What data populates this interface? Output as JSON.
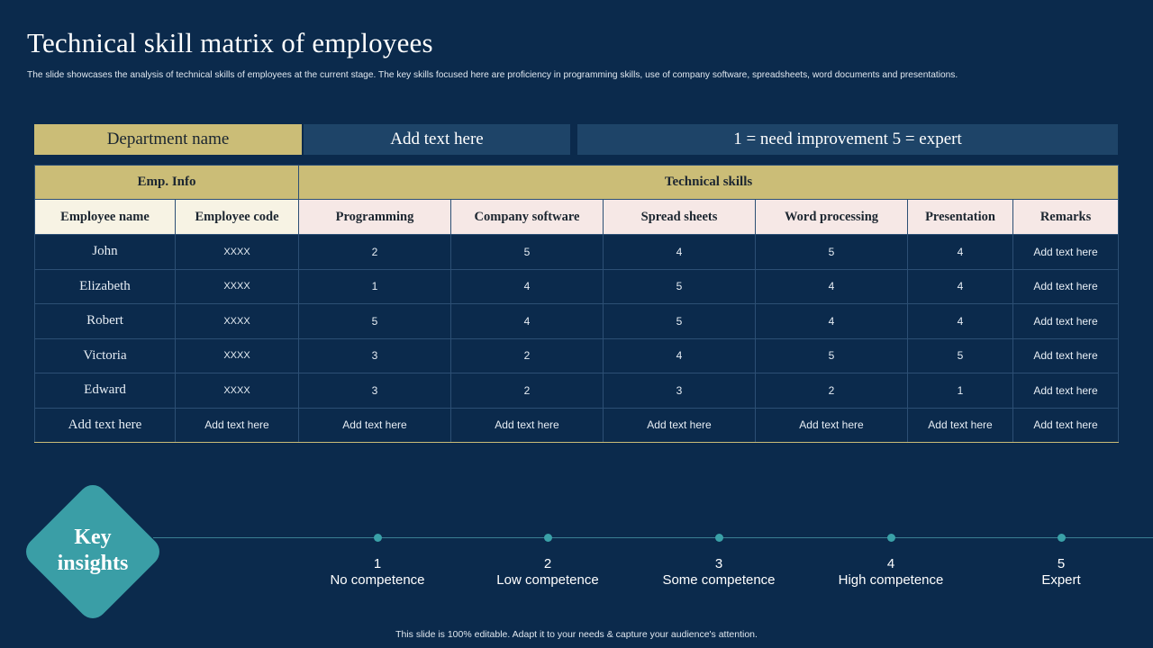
{
  "slide": {
    "title": "Technical skill matrix of employees",
    "subtitle": "The slide showcases the analysis of technical skills of employees at the current stage. The key skills focused here are proficiency in programming skills, use of company software, spreadsheets, word documents and presentations.",
    "footer": "This slide is 100% editable.  Adapt it to your needs & capture your audience's attention."
  },
  "header_bar": {
    "department": "Department name",
    "add_text": "Add text here",
    "scale": "1 = need improvement  5 = expert"
  },
  "table": {
    "groups": {
      "emp_info": "Emp. Info",
      "technical_skills": "Technical skills"
    },
    "columns": [
      "Employee name",
      "Employee code",
      "Programming",
      "Company software",
      "Spread sheets",
      "Word processing",
      "Presentation",
      "Remarks"
    ],
    "rows": [
      [
        "John",
        "XXXX",
        "2",
        "5",
        "4",
        "5",
        "4",
        "Add text here"
      ],
      [
        "Elizabeth",
        "XXXX",
        "1",
        "4",
        "5",
        "4",
        "4",
        "Add text here"
      ],
      [
        "Robert",
        "XXXX",
        "5",
        "4",
        "5",
        "4",
        "4",
        "Add text here"
      ],
      [
        "Victoria",
        "XXXX",
        "3",
        "2",
        "4",
        "5",
        "5",
        "Add text here"
      ],
      [
        "Edward",
        "XXXX",
        "3",
        "2",
        "3",
        "2",
        "1",
        "Add text here"
      ],
      [
        "Add text here",
        "Add text here",
        "Add text here",
        "Add text here",
        "Add text here",
        "Add text here",
        "Add text here",
        "Add text here"
      ]
    ]
  },
  "insights": {
    "label_line1": "Key",
    "label_line2": "insights",
    "scale": [
      {
        "num": "1",
        "label": "No competence"
      },
      {
        "num": "2",
        "label": "Low competence"
      },
      {
        "num": "3",
        "label": "Some competence"
      },
      {
        "num": "4",
        "label": "High competence"
      },
      {
        "num": "5",
        "label": "Expert"
      }
    ]
  },
  "colors": {
    "background": "#0b2a4c",
    "gold": "#cbbd77",
    "panel_blue": "#1e4468",
    "teal": "#3a9ea6"
  }
}
